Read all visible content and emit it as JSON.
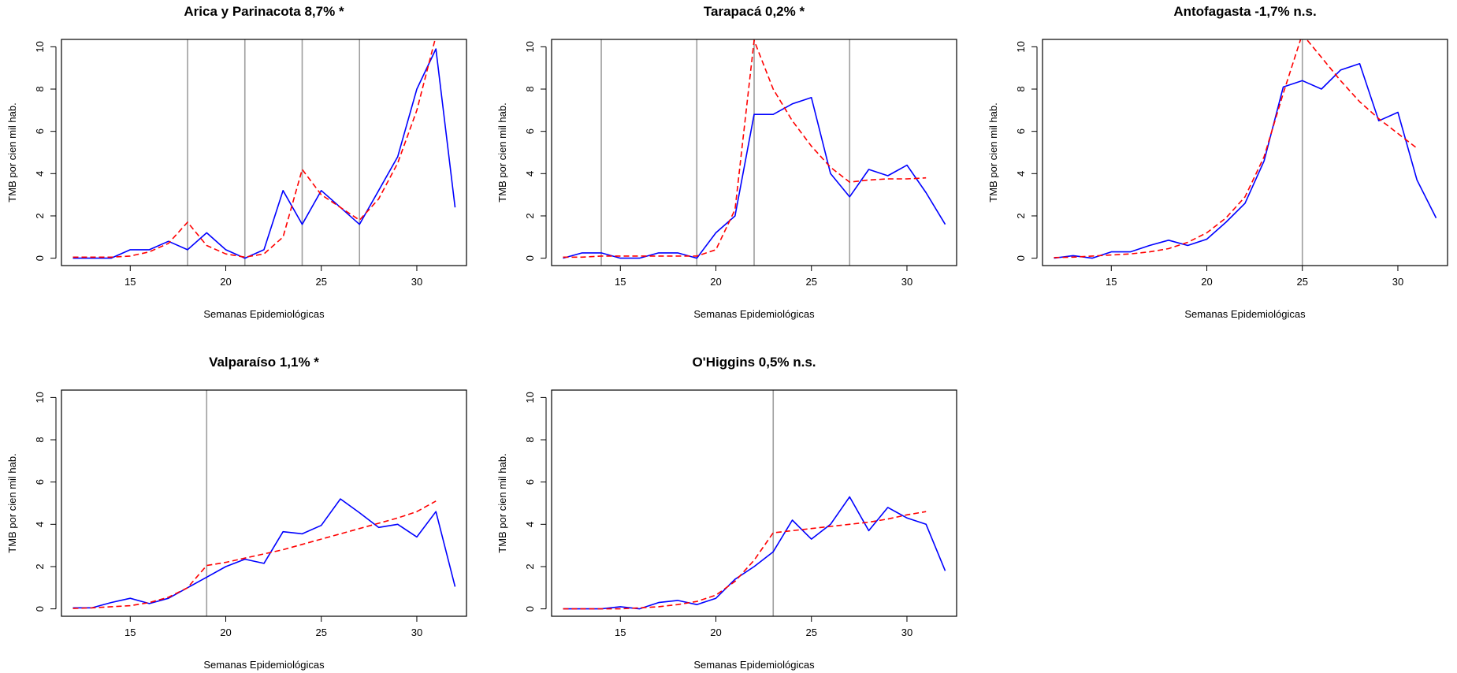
{
  "figure": {
    "xlabel": "Semanas Epidemiológicas",
    "ylabel": "TMB por cien mil hab."
  },
  "chart_data": [
    {
      "type": "line",
      "title": "Arica y Parinacota 8,7% *",
      "xlabel": "Semanas Epidemiológicas",
      "ylabel": "TMB por cien mil hab.",
      "xlim": [
        11.4,
        32.6
      ],
      "ylim": [
        -0.35,
        10.35
      ],
      "xticks": [
        15,
        20,
        25,
        30
      ],
      "yticks": [
        0,
        2,
        4,
        6,
        8,
        10
      ],
      "vlines": [
        18,
        21,
        24,
        27
      ],
      "series": [
        {
          "style": "observed",
          "color": "#0000ff",
          "x": [
            12,
            13,
            14,
            15,
            16,
            17,
            18,
            19,
            20,
            21,
            22,
            23,
            24,
            25,
            26,
            27,
            28,
            29,
            30,
            31,
            32
          ],
          "y": [
            0,
            0,
            0,
            0.4,
            0.4,
            0.8,
            0.4,
            1.2,
            0.4,
            0,
            0.4,
            3.2,
            1.6,
            3.2,
            2.4,
            1.6,
            3.2,
            4.8,
            8.0,
            9.9,
            2.4
          ]
        },
        {
          "style": "fitted",
          "color": "#ff0000",
          "x": [
            12,
            13,
            14,
            15,
            16,
            17,
            18,
            19,
            20,
            21,
            22,
            23,
            24,
            25,
            26,
            27,
            28,
            29,
            30,
            31
          ],
          "y": [
            0.05,
            0.05,
            0.05,
            0.1,
            0.3,
            0.7,
            1.7,
            0.6,
            0.2,
            0.05,
            0.2,
            1.0,
            4.2,
            3.0,
            2.4,
            1.8,
            2.8,
            4.5,
            7.0,
            10.5
          ]
        }
      ]
    },
    {
      "type": "line",
      "title": "Tarapacá 0,2% *",
      "xlabel": "Semanas Epidemiológicas",
      "ylabel": "TMB por cien mil hab.",
      "xlim": [
        11.4,
        32.6
      ],
      "ylim": [
        -0.35,
        10.35
      ],
      "xticks": [
        15,
        20,
        25,
        30
      ],
      "yticks": [
        0,
        2,
        4,
        6,
        8,
        10
      ],
      "vlines": [
        14,
        19,
        22,
        27
      ],
      "series": [
        {
          "style": "observed",
          "color": "#0000ff",
          "x": [
            12,
            13,
            14,
            15,
            16,
            17,
            18,
            19,
            20,
            21,
            22,
            23,
            24,
            25,
            26,
            27,
            28,
            29,
            30,
            31,
            32
          ],
          "y": [
            0,
            0.25,
            0.25,
            0,
            0,
            0.25,
            0.25,
            0,
            1.2,
            2.0,
            6.8,
            6.8,
            7.3,
            7.6,
            4.0,
            2.9,
            4.2,
            3.9,
            4.4,
            3.1,
            1.6
          ]
        },
        {
          "style": "fitted",
          "color": "#ff0000",
          "x": [
            12,
            13,
            14,
            15,
            16,
            17,
            18,
            19,
            20,
            21,
            22,
            23,
            24,
            25,
            26,
            27,
            28,
            29,
            30,
            31
          ],
          "y": [
            0.05,
            0.05,
            0.1,
            0.1,
            0.1,
            0.1,
            0.1,
            0.1,
            0.4,
            2.3,
            10.3,
            8.0,
            6.5,
            5.3,
            4.3,
            3.6,
            3.7,
            3.75,
            3.75,
            3.8
          ]
        }
      ]
    },
    {
      "type": "line",
      "title": "Antofagasta -1,7% n.s.",
      "xlabel": "Semanas Epidemiológicas",
      "ylabel": "TMB por cien mil hab.",
      "xlim": [
        11.4,
        32.6
      ],
      "ylim": [
        -0.35,
        10.35
      ],
      "xticks": [
        15,
        20,
        25,
        30
      ],
      "yticks": [
        0,
        2,
        4,
        6,
        8,
        10
      ],
      "vlines": [
        25
      ],
      "series": [
        {
          "style": "observed",
          "color": "#0000ff",
          "x": [
            12,
            13,
            14,
            15,
            16,
            17,
            18,
            19,
            20,
            21,
            22,
            23,
            24,
            25,
            26,
            27,
            28,
            29,
            30,
            31,
            32
          ],
          "y": [
            0,
            0.12,
            0,
            0.3,
            0.3,
            0.6,
            0.85,
            0.6,
            0.9,
            1.7,
            2.6,
            4.6,
            8.1,
            8.4,
            8.0,
            8.9,
            9.2,
            6.5,
            6.9,
            3.7,
            1.9
          ]
        },
        {
          "style": "fitted",
          "color": "#ff0000",
          "x": [
            12,
            13,
            14,
            15,
            16,
            17,
            18,
            19,
            20,
            21,
            22,
            23,
            24,
            25,
            26,
            27,
            28,
            29,
            30,
            31
          ],
          "y": [
            0.03,
            0.05,
            0.1,
            0.15,
            0.2,
            0.3,
            0.45,
            0.75,
            1.2,
            1.9,
            2.9,
            4.8,
            7.8,
            10.6,
            9.5,
            8.4,
            7.4,
            6.6,
            5.9,
            5.2
          ]
        }
      ]
    },
    {
      "type": "line",
      "title": "Valparaíso 1,1% *",
      "xlabel": "Semanas Epidemiológicas",
      "ylabel": "TMB por cien mil hab.",
      "xlim": [
        11.4,
        32.6
      ],
      "ylim": [
        -0.35,
        10.35
      ],
      "xticks": [
        15,
        20,
        25,
        30
      ],
      "yticks": [
        0,
        2,
        4,
        6,
        8,
        10
      ],
      "vlines": [
        19
      ],
      "series": [
        {
          "style": "observed",
          "color": "#0000ff",
          "x": [
            12,
            13,
            14,
            15,
            16,
            17,
            18,
            19,
            20,
            21,
            22,
            23,
            24,
            25,
            26,
            27,
            28,
            29,
            30,
            31,
            32
          ],
          "y": [
            0.05,
            0.05,
            0.3,
            0.5,
            0.25,
            0.5,
            1.0,
            1.5,
            2.0,
            2.35,
            2.15,
            3.65,
            3.55,
            3.95,
            5.2,
            4.55,
            3.85,
            4.0,
            3.4,
            4.6,
            1.05
          ]
        },
        {
          "style": "fitted",
          "color": "#ff0000",
          "x": [
            12,
            13,
            14,
            15,
            16,
            17,
            18,
            19,
            20,
            21,
            22,
            23,
            24,
            25,
            26,
            27,
            28,
            29,
            30,
            31
          ],
          "y": [
            0.02,
            0.05,
            0.1,
            0.15,
            0.3,
            0.55,
            1.0,
            2.05,
            2.2,
            2.4,
            2.6,
            2.8,
            3.05,
            3.3,
            3.55,
            3.8,
            4.05,
            4.3,
            4.6,
            5.1
          ]
        }
      ]
    },
    {
      "type": "line",
      "title": "O'Higgins 0,5% n.s.",
      "xlabel": "Semanas Epidemiológicas",
      "ylabel": "TMB por cien mil hab.",
      "xlim": [
        11.4,
        32.6
      ],
      "ylim": [
        -0.35,
        10.35
      ],
      "xticks": [
        15,
        20,
        25,
        30
      ],
      "yticks": [
        0,
        2,
        4,
        6,
        8,
        10
      ],
      "vlines": [
        23
      ],
      "series": [
        {
          "style": "observed",
          "color": "#0000ff",
          "x": [
            12,
            13,
            14,
            15,
            16,
            17,
            18,
            19,
            20,
            21,
            22,
            23,
            24,
            25,
            26,
            27,
            28,
            29,
            30,
            31,
            32
          ],
          "y": [
            0,
            0,
            0,
            0.1,
            0,
            0.3,
            0.4,
            0.2,
            0.5,
            1.4,
            2.0,
            2.7,
            4.2,
            3.3,
            4.0,
            5.3,
            3.7,
            4.8,
            4.3,
            4.0,
            1.8
          ]
        },
        {
          "style": "fitted",
          "color": "#ff0000",
          "x": [
            12,
            13,
            14,
            15,
            16,
            17,
            18,
            19,
            20,
            21,
            22,
            23,
            24,
            25,
            26,
            27,
            28,
            29,
            30,
            31
          ],
          "y": [
            0,
            0,
            0,
            0,
            0.05,
            0.1,
            0.2,
            0.35,
            0.65,
            1.3,
            2.3,
            3.6,
            3.7,
            3.8,
            3.9,
            4.0,
            4.1,
            4.25,
            4.45,
            4.6
          ]
        }
      ]
    }
  ]
}
